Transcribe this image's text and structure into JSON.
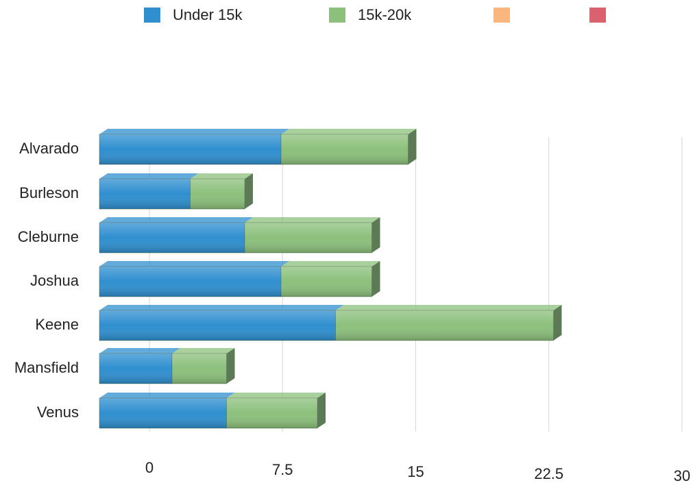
{
  "chart_data": {
    "type": "stacked-bar-3d",
    "categories": [
      "Alvarado",
      "Burleson",
      "Cleburne",
      "Joshua",
      "Keene",
      "Mansfield",
      "Venus"
    ],
    "series": [
      {
        "name": "Under 15k",
        "color": "#2f8fcf",
        "values": [
          10,
          5,
          8,
          10,
          13,
          4,
          7
        ]
      },
      {
        "name": "15k-20k",
        "color": "#8cc07c",
        "values": [
          7,
          3,
          7,
          5,
          12,
          3,
          5
        ]
      }
    ],
    "unlabeled_legend_colors": [
      "#f9b67f",
      "#d9626e"
    ],
    "xlim": [
      0,
      30
    ],
    "xticks": [
      0,
      7.5,
      15,
      22.5,
      30
    ],
    "grid": true
  }
}
